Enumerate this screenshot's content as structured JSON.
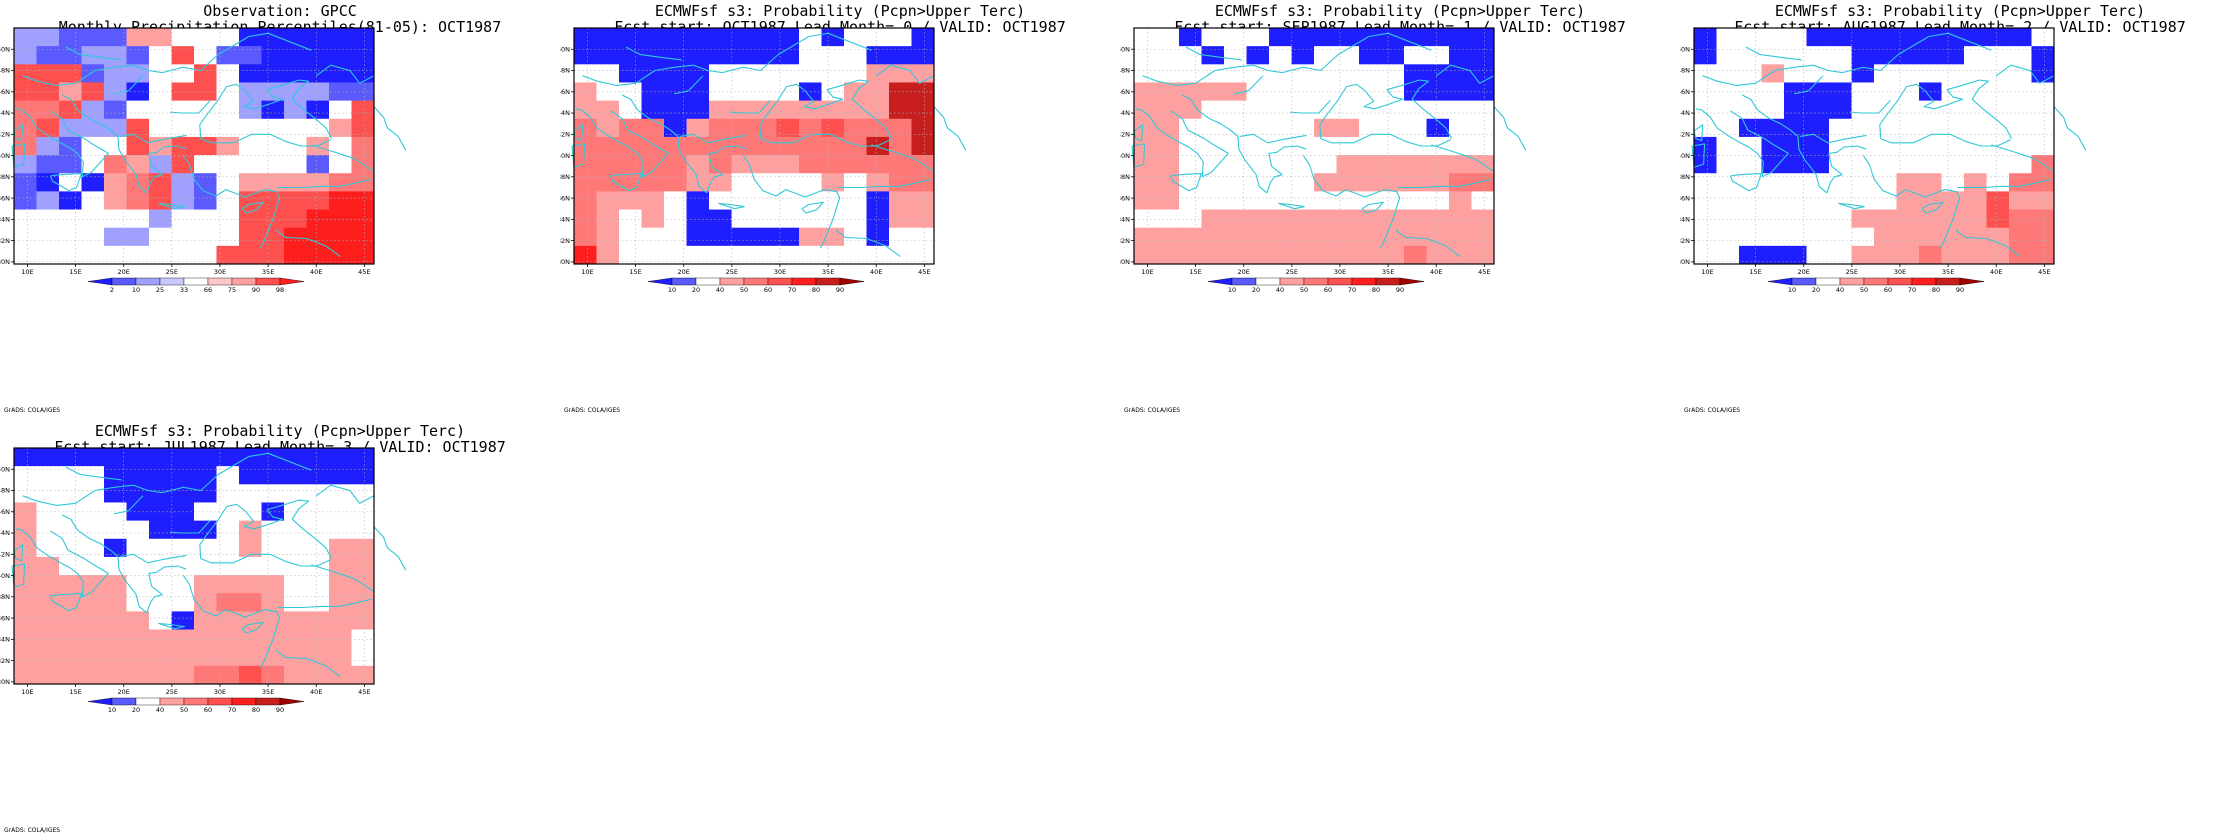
{
  "credit": "GrADS: COLA/IGES",
  "colors": {
    "blue_dark": "#1e1eff",
    "blue_mid": "#5a5aff",
    "blue_light": "#a0a0ff",
    "white": "#ffffff",
    "red_light": "#ffa0a0",
    "red_mid": "#ff7878",
    "red_strong": "#ff5050",
    "red_deep": "#ff1e1e",
    "red_dark": "#c81e1e",
    "red_darkest": "#a00000",
    "coast": "#30c8d8",
    "grid": "#b4b4b4"
  },
  "axes": {
    "lon_ticks": [
      "10E",
      "15E",
      "20E",
      "25E",
      "30E",
      "35E",
      "40E",
      "45E"
    ],
    "lat_ticks": [
      "30N",
      "32N",
      "34N",
      "36N",
      "38N",
      "40N",
      "42N",
      "44N",
      "46N",
      "48N",
      "50N"
    ]
  },
  "panels": [
    {
      "id": "obs",
      "title1": "Observation: GPCC",
      "title2": "Monthly Precipitation Percentiles(81-05): OCT1987",
      "colorbar": {
        "labels": [
          "2",
          "10",
          "25",
          "33",
          "66",
          "75",
          "90",
          "98"
        ],
        "colors": [
          "#1e1eff",
          "#5a5aff",
          "#a0a0ff",
          "#c8c8ff",
          "#ffffff",
          "#ffc8c8",
          "#ffa0a0",
          "#ff5050",
          "#ff1e1e"
        ]
      },
      "grid": [
        "CCAAARRWWWBBBBBB",
        "CAACCAWTWAABBBBB",
        "TTTACCWWDWBBBBBB",
        "TTRTCBWTTWCCCCAA",
        "SSTCAWWWWWCBCBWT",
        "STCCCTWWWWWWWWRT",
        "SCAWWTRTTRWWWRWS",
        "CAAWSRCTWWWWWAWS",
        "ABWBRSTCAWRRRRSS",
        "ACBWRSTCAWTTTTUU",
        "WWWWWWCWWWTTTUUU",
        "WWWWCCWWWWTTUUUU",
        "WWWWWWWWWTTTUUUU"
      ]
    },
    {
      "id": "lead0",
      "title1": "ECMWFsf s3: Probability (Pcpn>Upper Terc)",
      "title2": "Fcst start: OCT1987   Lead Month= 0 / VALID: OCT1987",
      "colorbar": {
        "labels": [
          "10",
          "20",
          "40",
          "50",
          "60",
          "70",
          "80",
          "90"
        ],
        "colors": [
          "#1e1eff",
          "#5a5aff",
          "#ffffff",
          "#ffa0a0",
          "#ff7878",
          "#ff5050",
          "#ff1e1e",
          "#c81e1e",
          "#a00000"
        ]
      },
      "grid": [
        "BBBBBBBBBBWBWWWB",
        "BBBBBBBBBBWWWBBB",
        "WWBBBBWWWWWWWRRR",
        "RWWBBBWWWWBWRRVV",
        "RRWBBBRRRRRRRRVV",
        "SRSSBRSSSTSTSSSV",
        "SSSSSSSSSSSSSVSV",
        "SSSSSRSRRRSSSSSS",
        "SSSSSRRWWWWRWRSS",
        "SRRRWBWWWWWWWBRR",
        "SRWRWBBWWWWWWBRR",
        "SRWWWBBBBBRRWBWW",
        "URWWWWWWWWWWWWWW"
      ]
    },
    {
      "id": "lead1",
      "title1": "ECMWFsf s3: Probability (Pcpn>Upper Terc)",
      "title2": "Fcst start: SEP1987   Lead Month= 1 / VALID: OCT1987",
      "colorbar": {
        "labels": [
          "10",
          "20",
          "40",
          "50",
          "60",
          "70",
          "80",
          "90"
        ],
        "colors": [
          "#1e1eff",
          "#5a5aff",
          "#ffffff",
          "#ffa0a0",
          "#ff7878",
          "#ff5050",
          "#ff1e1e",
          "#c81e1e",
          "#a00000"
        ]
      },
      "grid": [
        "WWBWWWBBBBBBBBBB",
        "WWWBWBWBWWBBWWBB",
        "WWWWWWWWWWWWBBBB",
        "RRRRLWWWWWWWBBBB",
        "RRRWWWWWWWWWWWWW",
        "RRWWWWWWRRWWWBWW",
        "RRWWWWWWWWWWWWWW",
        "RRWWWWWWWRRRRRRR",
        "RRWWWWWWRRRRRRSS",
        "RRWWWWWWWWWWWWRW",
        "WWWRRRRRRRRRRRRR",
        "RRRRRRRRRRRRRRRR",
        "RRRRRRRRRRRRSRRR"
      ]
    },
    {
      "id": "lead2",
      "title1": "ECMWFsf s3: Probability (Pcpn>Upper Terc)",
      "title2": "Fcst start: AUG1987   Lead Month= 2 / VALID: OCT1987",
      "colorbar": {
        "labels": [
          "10",
          "20",
          "40",
          "50",
          "60",
          "70",
          "80",
          "90"
        ],
        "colors": [
          "#1e1eff",
          "#5a5aff",
          "#ffffff",
          "#ffa0a0",
          "#ff7878",
          "#ff5050",
          "#ff1e1e",
          "#c81e1e",
          "#a00000"
        ]
      },
      "grid": [
        "BWWWWBBBBBBBBBBW",
        "BWWWWWWBBBBBWWWB",
        "WWWRWWWBWWWWWWWB",
        "WWWWBBBWWWBWWWWW",
        "WWWWBBBWWWWWWWWW",
        "WWBBBBWWWWWWWWWW",
        "BWWBBBWWWWWWWWWW",
        "BWWBBBWWWWWWWWWS",
        "WWWWWWWWWRRWRWSS",
        "WWWWWWWWWRRRRTRR",
        "WWWWWWWRRRRRRTSS",
        "WWWWWWWWRRRRRRSS",
        "WWBBBWWRRRSRRRSS"
      ]
    },
    {
      "id": "lead3",
      "title1": "ECMWFsf s3: Probability (Pcpn>Upper Terc)",
      "title2": "Fcst start: JUL1987   Lead Month= 3 / VALID: OCT1987",
      "colorbar": {
        "labels": [
          "10",
          "20",
          "40",
          "50",
          "60",
          "70",
          "80",
          "90"
        ],
        "colors": [
          "#1e1eff",
          "#5a5aff",
          "#ffffff",
          "#ffa0a0",
          "#ff7878",
          "#ff5050",
          "#ff1e1e",
          "#c81e1e",
          "#a00000"
        ]
      },
      "grid": [
        "BBBBBBBBBBBBBBBB",
        "WWWWBBBBBWBBBBBB",
        "WWWWBBBBBWWWWWWW",
        "RWWWWBBBWWWBWWWW",
        "RWWWWWBBBWRWWWWW",
        "RWWWBWWWWWRWWWRR",
        "RRWWWWWWWWWWWWRR",
        "RRRRRWWWRRRRWWRR",
        "RRRRRWWWRSSRWWRR",
        "RRRRRRWBRRRRRRRR",
        "RRRRRRRRRRRRRRRW",
        "RRRRRRRRRRRRRRRW",
        "RRRRRRRRSSTSRRRR"
      ]
    }
  ]
}
